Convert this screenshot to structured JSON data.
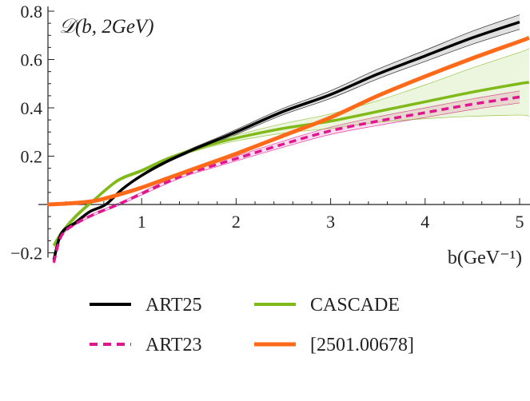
{
  "chart_data": {
    "type": "line",
    "title": "𝒟(b, 2GeV)",
    "xlabel": "b(GeV⁻¹)",
    "ylabel": "",
    "xlim": [
      0,
      5.1
    ],
    "ylim": [
      -0.25,
      0.82
    ],
    "x_ticks": [
      1,
      2,
      3,
      4,
      5
    ],
    "x_tick_labels": [
      "1",
      "2",
      "3",
      "4",
      "5"
    ],
    "y_ticks": [
      -0.2,
      0.2,
      0.4,
      0.6,
      0.8
    ],
    "y_tick_labels": [
      "−0.2",
      "0.2",
      "0.4",
      "0.6",
      "0.8"
    ],
    "grid": false,
    "legend_placement": "bottom",
    "series": [
      {
        "name": "ART25",
        "color": "#000000",
        "dash": false,
        "x": [
          0.07,
          0.15,
          0.3,
          0.45,
          0.62,
          0.8,
          1.0,
          1.25,
          1.5,
          1.75,
          2.0,
          2.5,
          3.0,
          3.5,
          4.0,
          4.5,
          5.0
        ],
        "y": [
          -0.23,
          -0.12,
          -0.075,
          -0.03,
          0.0,
          0.065,
          0.12,
          0.175,
          0.22,
          0.26,
          0.3,
          0.385,
          0.455,
          0.54,
          0.615,
          0.69,
          0.755
        ],
        "band": [
          0.003,
          0.004,
          0.004,
          0.004,
          0.004,
          0.004,
          0.005,
          0.006,
          0.007,
          0.008,
          0.01,
          0.013,
          0.016,
          0.02,
          0.023,
          0.027,
          0.03
        ]
      },
      {
        "name": "ART23",
        "color": "#e0168f",
        "dash": true,
        "x": [
          0.07,
          0.15,
          0.3,
          0.5,
          0.75,
          1.0,
          1.25,
          1.5,
          1.75,
          2.0,
          2.5,
          3.0,
          3.5,
          4.0,
          4.5,
          5.0
        ],
        "y": [
          -0.24,
          -0.13,
          -0.08,
          -0.04,
          0.0,
          0.045,
          0.09,
          0.13,
          0.16,
          0.19,
          0.25,
          0.305,
          0.345,
          0.38,
          0.415,
          0.445
        ],
        "band": [
          0.004,
          0.004,
          0.004,
          0.005,
          0.005,
          0.006,
          0.007,
          0.008,
          0.009,
          0.01,
          0.013,
          0.015,
          0.018,
          0.02,
          0.022,
          0.025
        ]
      },
      {
        "name": "CASCADE",
        "color": "#80b91a",
        "dash": false,
        "x": [
          0.07,
          0.15,
          0.3,
          0.5,
          0.75,
          1.0,
          1.25,
          1.5,
          1.75,
          2.0,
          2.5,
          3.0,
          3.5,
          4.0,
          4.5,
          5.0,
          5.1
        ],
        "y": [
          -0.17,
          -0.12,
          -0.05,
          0.02,
          0.1,
          0.14,
          0.185,
          0.22,
          0.25,
          0.275,
          0.315,
          0.345,
          0.385,
          0.425,
          0.465,
          0.5,
          0.505
        ],
        "band": [
          0.01,
          0.01,
          0.008,
          0.006,
          0.006,
          0.006,
          0.006,
          0.007,
          0.009,
          0.012,
          0.02,
          0.03,
          0.045,
          0.07,
          0.1,
          0.13,
          0.14
        ]
      },
      {
        "name": "[2501.00678]",
        "color": "#ff6a1a",
        "dash": false,
        "x": [
          0.0,
          0.25,
          0.5,
          0.75,
          1.0,
          1.25,
          1.5,
          1.75,
          2.0,
          2.5,
          3.0,
          3.5,
          4.0,
          4.5,
          5.0,
          5.1
        ],
        "y": [
          0.0,
          0.005,
          0.015,
          0.04,
          0.07,
          0.105,
          0.14,
          0.175,
          0.21,
          0.285,
          0.36,
          0.45,
          0.53,
          0.605,
          0.675,
          0.69
        ],
        "band": null
      }
    ]
  }
}
